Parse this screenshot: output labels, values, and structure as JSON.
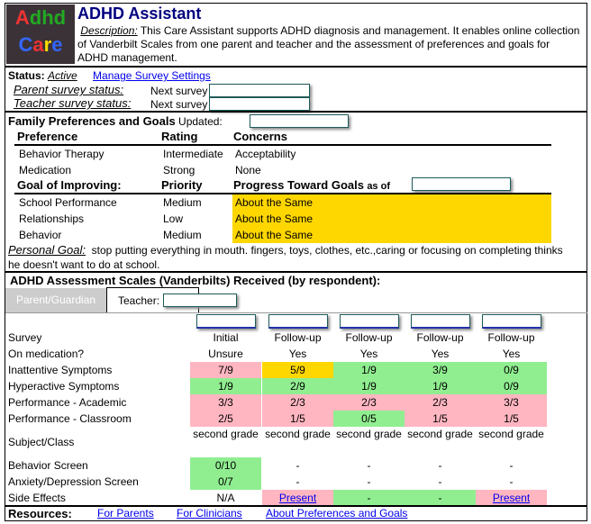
{
  "header": {
    "title": "ADHD Assistant",
    "logo_text": "Adhd Care",
    "description_label": "Description:",
    "description": "This Care Assistant supports ADHD diagnosis and management. It enables online collection of Vanderbilt Scales from one parent and teacher and the assessment of preferences and goals for ADHD management."
  },
  "status": {
    "label": "Status:",
    "value": "Active",
    "manage_link": "Manage Survey Settings",
    "parent_label": "Parent survey status:",
    "teacher_label": "Teacher survey status:",
    "next_survey": "Next survey"
  },
  "family": {
    "title": "Family Preferences and Goals",
    "updated_label": "Updated:",
    "pref_headers": [
      "Preference",
      "Rating",
      "Concerns"
    ],
    "preferences": [
      {
        "name": "Behavior Therapy",
        "rating": "Intermediate",
        "concern": "Acceptability"
      },
      {
        "name": "Medication",
        "rating": "Strong",
        "concern": "None"
      }
    ],
    "goal_headers": [
      "Goal of Improving:",
      "Priority",
      "Progress Toward Goals"
    ],
    "as_of": "as of",
    "goals": [
      {
        "name": "School Performance",
        "priority": "Medium",
        "progress": "About the Same"
      },
      {
        "name": "Relationships",
        "priority": "Low",
        "progress": "About the Same"
      },
      {
        "name": "Behavior",
        "priority": "Medium",
        "progress": "About the Same"
      }
    ],
    "personal_goal_label": "Personal Goal:",
    "personal_goal": "stop putting everything in mouth. fingers, toys, clothes, etc.,caring or focusing on completing thinks he doesn't want to do at school."
  },
  "scales": {
    "title": "ADHD Assessment Scales (Vanderbilts) Received (by respondent):",
    "tab_parent": "Parent/Guardian",
    "tab_teacher": "Teacher:",
    "rows": [
      {
        "label": "Survey",
        "values": [
          "Initial",
          "Follow-up",
          "Follow-up",
          "Follow-up",
          "Follow-up"
        ],
        "colors": [
          "",
          "",
          "",
          "",
          ""
        ]
      },
      {
        "label": "On medication?",
        "values": [
          "Unsure",
          "Yes",
          "Yes",
          "Yes",
          "Yes"
        ],
        "colors": [
          "",
          "",
          "",
          "",
          ""
        ]
      },
      {
        "label": "Inattentive Symptoms",
        "values": [
          "7/9",
          "5/9",
          "1/9",
          "3/9",
          "0/9"
        ],
        "colors": [
          "pink",
          "gold",
          "green",
          "green",
          "green"
        ]
      },
      {
        "label": "Hyperactive Symptoms",
        "values": [
          "1/9",
          "2/9",
          "1/9",
          "1/9",
          "0/9"
        ],
        "colors": [
          "green",
          "green",
          "green",
          "green",
          "green"
        ]
      },
      {
        "label": "Performance - Academic",
        "values": [
          "3/3",
          "2/3",
          "2/3",
          "2/3",
          "3/3"
        ],
        "colors": [
          "pink",
          "pink",
          "pink",
          "pink",
          "pink"
        ]
      },
      {
        "label": "Performance - Classroom",
        "values": [
          "2/5",
          "1/5",
          "0/5",
          "1/5",
          "1/5"
        ],
        "colors": [
          "pink",
          "pink",
          "green",
          "pink",
          "pink"
        ]
      }
    ],
    "subject_label": "Subject/Class",
    "subject_values": [
      "second grade",
      "second grade",
      "second grade",
      "second grade",
      "second grade"
    ],
    "rows2": [
      {
        "label": "Behavior Screen",
        "values": [
          "0/10",
          "-",
          "-",
          "-",
          "-"
        ],
        "colors": [
          "green",
          "",
          "",
          "",
          ""
        ]
      },
      {
        "label": "Anxiety/Depression Screen",
        "values": [
          "0/7",
          "-",
          "-",
          "-",
          "-"
        ],
        "colors": [
          "green",
          "",
          "",
          "",
          ""
        ]
      }
    ],
    "side_label": "Side Effects",
    "side_values": [
      "N/A",
      "Present",
      "-",
      "-",
      "Present"
    ],
    "side_colors": [
      "",
      "pink",
      "green",
      "green",
      "pink"
    ],
    "side_links": [
      false,
      true,
      false,
      false,
      true
    ]
  },
  "resources": {
    "label": "Resources:",
    "links": [
      "For Parents",
      "For Clinicians",
      "About Preferences and Goals"
    ]
  },
  "colors": {
    "pink": "#ffb6c1",
    "green": "#90ee90",
    "gold": "#ffd700",
    "link": "#0000ee",
    "title": "#000080"
  }
}
